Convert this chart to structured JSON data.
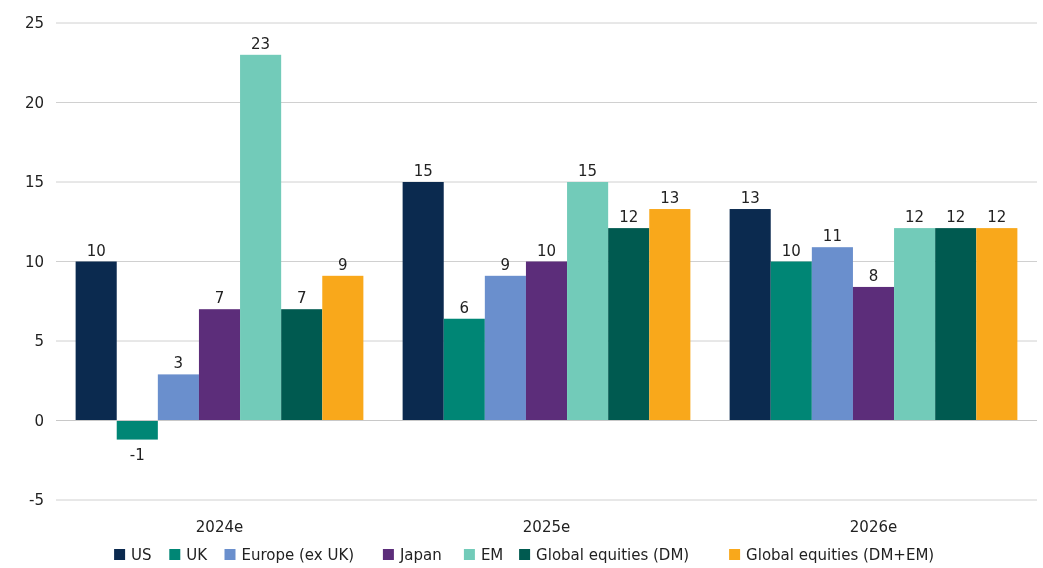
{
  "chart_data": {
    "type": "bar",
    "categories": [
      "2024e",
      "2025e",
      "2026e"
    ],
    "series": [
      {
        "name": "US",
        "color": "#0b2a4f",
        "values": [
          10.0,
          15.0,
          13.3
        ],
        "value_labels": [
          "10",
          "15",
          "13"
        ]
      },
      {
        "name": "UK",
        "color": "#008675",
        "values": [
          -1.2,
          6.4,
          10.0
        ],
        "value_labels": [
          "-1",
          "6",
          "10"
        ]
      },
      {
        "name": "Europe (ex UK)",
        "color": "#6a8fcd",
        "values": [
          2.9,
          9.1,
          10.9
        ],
        "value_labels": [
          "3",
          "9",
          "11"
        ]
      },
      {
        "name": "Japan",
        "color": "#5c2d7a",
        "values": [
          7.0,
          10.0,
          8.4
        ],
        "value_labels": [
          "7",
          "10",
          "8"
        ]
      },
      {
        "name": "EM",
        "color": "#72cbb9",
        "values": [
          23.0,
          15.0,
          12.1
        ],
        "value_labels": [
          "23",
          "15",
          "12"
        ]
      },
      {
        "name": "Global equities (DM)",
        "color": "#005a50",
        "values": [
          7.0,
          12.1,
          12.1
        ],
        "value_labels": [
          "7",
          "12",
          "12"
        ]
      },
      {
        "name": "Global equities (DM+EM)",
        "color": "#f9a81b",
        "values": [
          9.1,
          13.3,
          12.1
        ],
        "value_labels": [
          "9",
          "13",
          "12"
        ]
      }
    ],
    "ylim": [
      -5,
      25
    ],
    "yticks": [
      -5,
      0,
      5,
      10,
      15,
      20,
      25
    ],
    "grid": "y",
    "legend": "bottom"
  }
}
